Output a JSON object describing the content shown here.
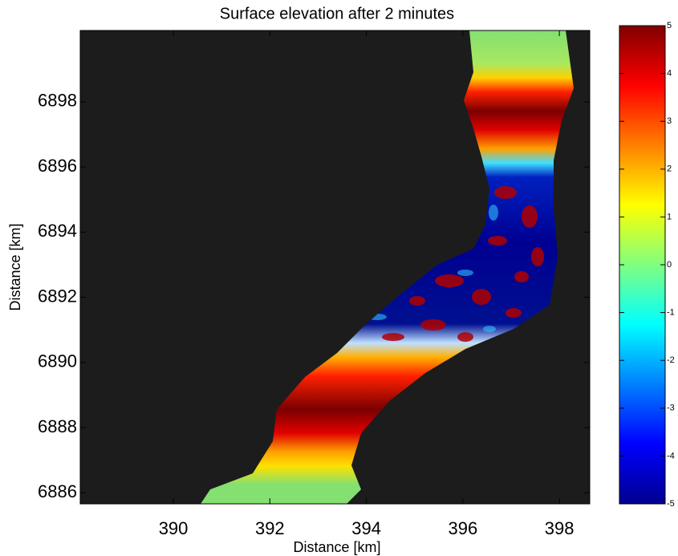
{
  "chart_data": {
    "type": "field",
    "title": "Surface elevation after 2 minutes",
    "xlabel": "Distance [km]",
    "ylabel": "Distance [km]",
    "xlim": [
      388.07,
      398.63
    ],
    "xticks": [
      390,
      392,
      394,
      396,
      398
    ],
    "ylim": [
      6885.66,
      6900.19
    ],
    "yticks": [
      6886,
      6888,
      6890,
      6892,
      6894,
      6896,
      6898
    ],
    "clim": [
      -5,
      5
    ],
    "cticks": [
      -5,
      -4,
      -3,
      -2,
      -1,
      0,
      1,
      2,
      3,
      4,
      5
    ]
  }
}
